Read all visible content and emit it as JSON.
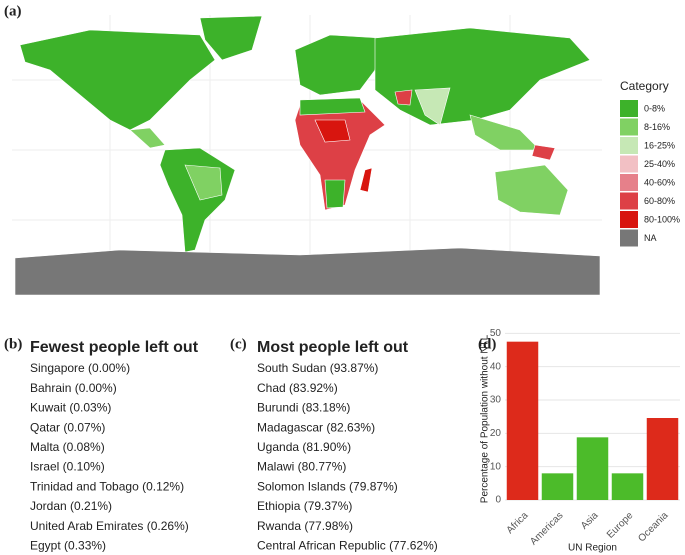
{
  "panels": {
    "a": "(a)",
    "b": "(b)",
    "c": "(c)",
    "d": "(d)"
  },
  "map": {
    "legend_title": "Category",
    "legend": [
      {
        "label": "0-8%",
        "color": "#3db22a"
      },
      {
        "label": "8-16%",
        "color": "#80d163"
      },
      {
        "label": "16-25%",
        "color": "#c6e8b5"
      },
      {
        "label": "25-40%",
        "color": "#f2c0c4"
      },
      {
        "label": "40-60%",
        "color": "#e6808a"
      },
      {
        "label": "60-80%",
        "color": "#dd4046"
      },
      {
        "label": "80-100%",
        "color": "#d8150f"
      },
      {
        "label": "NA",
        "color": "#777777"
      }
    ]
  },
  "fewest": {
    "title": "Fewest people left out",
    "items": [
      "Singapore (0.00%)",
      "Bahrain (0.00%)",
      "Kuwait (0.03%)",
      "Qatar (0.07%)",
      "Malta (0.08%)",
      "Israel (0.10%)",
      "Trinidad and Tobago (0.12%)",
      "Jordan (0.21%)",
      "United Arab Emirates (0.26%)",
      "Egypt (0.33%)"
    ]
  },
  "most": {
    "title": "Most people left out",
    "items": [
      "South Sudan (93.87%)",
      "Chad (83.92%)",
      "Burundi (83.18%)",
      "Madagascar (82.63%)",
      "Uganda (81.90%)",
      "Malawi (80.77%)",
      "Solomon Islands (79.87%)",
      "Ethiopia (79.37%)",
      "Rwanda (77.98%)",
      "Central African Republic (77.62%)"
    ]
  },
  "chart_data": {
    "type": "bar",
    "categories": [
      "Africa",
      "Americas",
      "Asia",
      "Europe",
      "Oceania"
    ],
    "values": [
      47.5,
      8,
      18.8,
      8,
      24.6
    ],
    "colors": [
      "#dd2a1b",
      "#4cbb2a",
      "#4cbb2a",
      "#4cbb2a",
      "#dd2a1b"
    ],
    "ylim": [
      -2.4,
      51
    ],
    "yticks": [
      0,
      10,
      20,
      30,
      40,
      50
    ],
    "y_label": "Percentage of Population without NTL",
    "x_label": "UN Region",
    "grid": true
  }
}
